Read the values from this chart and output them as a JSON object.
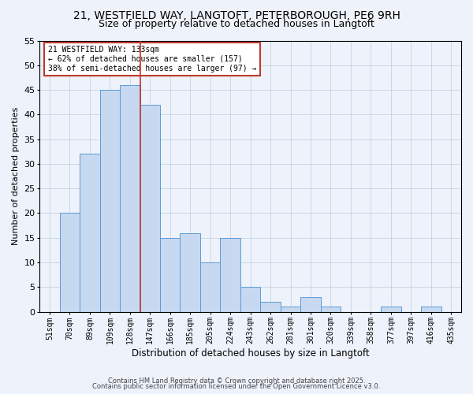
{
  "title1": "21, WESTFIELD WAY, LANGTOFT, PETERBOROUGH, PE6 9RH",
  "title2": "Size of property relative to detached houses in Langtoft",
  "xlabel": "Distribution of detached houses by size in Langtoft",
  "ylabel": "Number of detached properties",
  "bins": [
    "51sqm",
    "70sqm",
    "89sqm",
    "109sqm",
    "128sqm",
    "147sqm",
    "166sqm",
    "185sqm",
    "205sqm",
    "224sqm",
    "243sqm",
    "262sqm",
    "281sqm",
    "301sqm",
    "320sqm",
    "339sqm",
    "358sqm",
    "377sqm",
    "397sqm",
    "416sqm",
    "435sqm"
  ],
  "values": [
    0,
    20,
    32,
    45,
    46,
    42,
    15,
    16,
    10,
    15,
    5,
    2,
    1,
    3,
    1,
    0,
    0,
    1,
    0,
    1,
    0
  ],
  "bar_color": "#c6d9f0",
  "bar_edge_color": "#5b9bd5",
  "vline_color": "#c0392b",
  "annotation_text": "21 WESTFIELD WAY: 133sqm\n← 62% of detached houses are smaller (157)\n38% of semi-detached houses are larger (97) →",
  "annotation_box_color": "#ffffff",
  "annotation_box_edge": "#c0392b",
  "ylim": [
    0,
    55
  ],
  "yticks": [
    0,
    5,
    10,
    15,
    20,
    25,
    30,
    35,
    40,
    45,
    50,
    55
  ],
  "footer1": "Contains HM Land Registry data © Crown copyright and database right 2025.",
  "footer2": "Contains public sector information licensed under the Open Government Licence v3.0.",
  "bg_color": "#eef2fa",
  "title1_fontsize": 10,
  "title2_fontsize": 9,
  "tick_fontsize": 7,
  "ylabel_fontsize": 8,
  "xlabel_fontsize": 8.5,
  "footer_fontsize": 6,
  "annot_fontsize": 7
}
